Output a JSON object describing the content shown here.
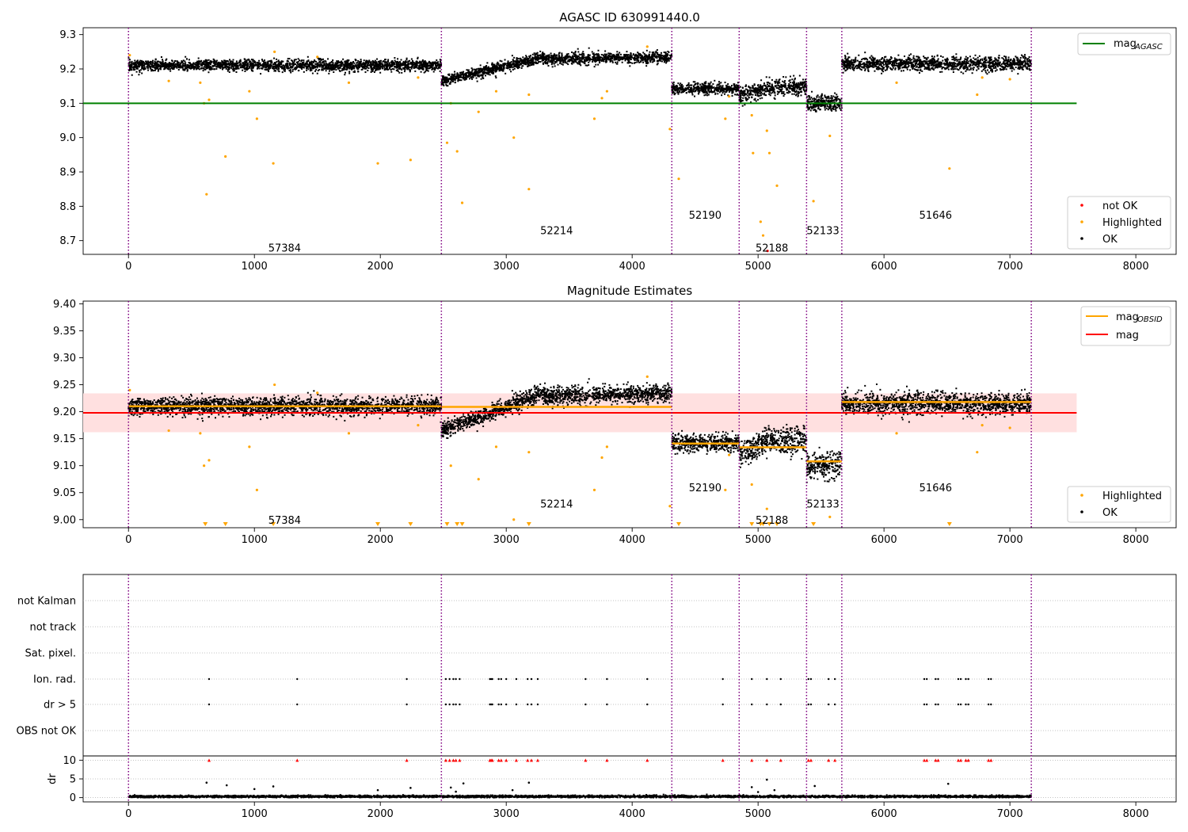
{
  "chart_data": [
    {
      "type": "scatter",
      "title": "AGASC ID 630991440.0",
      "xlim": [
        -360,
        8320
      ],
      "ylim": [
        8.66,
        9.32
      ],
      "xticks": [
        0,
        1000,
        2000,
        3000,
        4000,
        5000,
        6000,
        7000,
        8000
      ],
      "xtick_labels": [
        "0",
        "1000",
        "2000",
        "3000",
        "4000",
        "5000",
        "6000",
        "7000",
        "8000"
      ],
      "yticks": [
        8.7,
        8.8,
        8.9,
        9.0,
        9.1,
        9.2,
        9.3
      ],
      "ytick_labels": [
        "8.7",
        "8.8",
        "8.9",
        "9.0",
        "9.1",
        "9.2",
        "9.3"
      ],
      "obs_boundaries": [
        0,
        2485,
        4315,
        4850,
        5385,
        5665,
        7170
      ],
      "obs_labels": [
        {
          "text": "57384",
          "x": 1240,
          "y": 8.68
        },
        {
          "text": "52214",
          "x": 3400,
          "y": 8.73
        },
        {
          "text": "52190",
          "x": 4580,
          "y": 8.775
        },
        {
          "text": "52188",
          "x": 5110,
          "y": 8.68
        },
        {
          "text": "52133",
          "x": 5515,
          "y": 8.73
        },
        {
          "text": "51646",
          "x": 6410,
          "y": 8.775
        }
      ],
      "segments": [
        {
          "x0": 0,
          "x1": 2485,
          "level": 9.21,
          "spread": 0.008
        },
        {
          "x0": 2485,
          "x1": 4315,
          "start": 9.165,
          "end": 9.235,
          "spread": 0.008
        },
        {
          "x0": 4315,
          "x1": 4850,
          "level": 9.142,
          "spread": 0.008
        },
        {
          "x0": 4850,
          "x1": 5385,
          "start": 9.12,
          "end": 9.148,
          "spread": 0.012
        },
        {
          "x0": 5385,
          "x1": 5665,
          "level": 9.1,
          "spread": 0.012
        },
        {
          "x0": 5665,
          "x1": 7170,
          "level": 9.215,
          "spread": 0.01
        }
      ],
      "highlighted_points": [
        [
          10,
          9.24
        ],
        [
          320,
          9.165
        ],
        [
          570,
          9.16
        ],
        [
          600,
          9.1
        ],
        [
          620,
          8.835
        ],
        [
          640,
          9.11
        ],
        [
          770,
          8.945
        ],
        [
          960,
          9.135
        ],
        [
          1020,
          9.055
        ],
        [
          1150,
          8.925
        ],
        [
          1160,
          9.25
        ],
        [
          1500,
          9.235
        ],
        [
          1750,
          9.16
        ],
        [
          1980,
          8.925
        ],
        [
          2240,
          8.935
        ],
        [
          2300,
          9.175
        ],
        [
          2530,
          8.985
        ],
        [
          2560,
          9.1
        ],
        [
          2610,
          8.96
        ],
        [
          2650,
          8.81
        ],
        [
          2780,
          9.075
        ],
        [
          2920,
          9.135
        ],
        [
          3060,
          9.0
        ],
        [
          3180,
          8.85
        ],
        [
          3180,
          9.125
        ],
        [
          3700,
          9.055
        ],
        [
          3760,
          9.115
        ],
        [
          3800,
          9.135
        ],
        [
          4120,
          9.265
        ],
        [
          4300,
          9.025
        ],
        [
          4370,
          8.88
        ],
        [
          4740,
          9.055
        ],
        [
          4770,
          9.12
        ],
        [
          4950,
          9.065
        ],
        [
          4960,
          8.955
        ],
        [
          5020,
          8.755
        ],
        [
          5040,
          8.715
        ],
        [
          5070,
          9.02
        ],
        [
          5090,
          8.955
        ],
        [
          5150,
          8.86
        ],
        [
          5440,
          8.815
        ],
        [
          5570,
          9.005
        ],
        [
          6100,
          9.16
        ],
        [
          6520,
          8.91
        ],
        [
          6740,
          9.125
        ],
        [
          6780,
          9.175
        ],
        [
          7000,
          9.17
        ]
      ],
      "not_ok_points": [
        [
          5075,
          8.67
        ]
      ],
      "lines": [
        {
          "name": "mag_AGASC",
          "value": 9.1,
          "color": "#008000",
          "x0": -360,
          "x1": 7530
        }
      ],
      "legends": {
        "upper": [
          {
            "label": "mag",
            "sub": "AGASC",
            "color": "#008000"
          }
        ],
        "lower": [
          {
            "label": "not OK",
            "color": "#ff0000"
          },
          {
            "label": "Highlighted",
            "color": "#ffa500"
          },
          {
            "label": "OK",
            "color": "#000000"
          }
        ]
      },
      "grid": false
    },
    {
      "type": "scatter",
      "title": "Magnitude Estimates",
      "xlim": [
        -360,
        8320
      ],
      "ylim": [
        8.985,
        9.405
      ],
      "xticks": [
        0,
        1000,
        2000,
        3000,
        4000,
        5000,
        6000,
        7000,
        8000
      ],
      "xtick_labels": [
        "0",
        "1000",
        "2000",
        "3000",
        "4000",
        "5000",
        "6000",
        "7000",
        "8000"
      ],
      "yticks": [
        9.0,
        9.05,
        9.1,
        9.15,
        9.2,
        9.25,
        9.3,
        9.35,
        9.4
      ],
      "ytick_labels": [
        "9.00",
        "9.05",
        "9.10",
        "9.15",
        "9.20",
        "9.25",
        "9.30",
        "9.35",
        "9.40"
      ],
      "obs_boundaries": [
        0,
        2485,
        4315,
        4850,
        5385,
        5665,
        7170
      ],
      "obs_labels": [
        {
          "text": "57384",
          "x": 1240,
          "y": 9.0
        },
        {
          "text": "52214",
          "x": 3400,
          "y": 9.03
        },
        {
          "text": "52190",
          "x": 4580,
          "y": 9.06
        },
        {
          "text": "52188",
          "x": 5110,
          "y": 9.0
        },
        {
          "text": "52133",
          "x": 5515,
          "y": 9.03
        },
        {
          "text": "51646",
          "x": 6410,
          "y": 9.06
        }
      ],
      "obs_mag": [
        {
          "x0": 0,
          "x1": 2485,
          "value": 9.21
        },
        {
          "x0": 2485,
          "x1": 4315,
          "value": 9.209
        },
        {
          "x0": 4315,
          "x1": 4850,
          "value": 9.141
        },
        {
          "x0": 4850,
          "x1": 5385,
          "value": 9.134
        },
        {
          "x0": 5385,
          "x1": 5665,
          "value": 9.108
        },
        {
          "x0": 5665,
          "x1": 7170,
          "value": 9.218
        }
      ],
      "mag": {
        "value": 9.198,
        "band": [
          9.162,
          9.234
        ],
        "x0": -360,
        "x1": 7530,
        "color": "#ff0000",
        "band_color": "#ffe0e0"
      },
      "below_axis_markers_x": [
        610,
        770,
        1150,
        1980,
        2240,
        2530,
        2610,
        2650,
        3180,
        4370,
        4950,
        5020,
        5040,
        5090,
        5150,
        5440,
        6520
      ],
      "legends": {
        "upper": [
          {
            "label": "mag",
            "sub": "OBSID",
            "color": "#ffa500"
          },
          {
            "label": "mag",
            "sub": "",
            "color": "#ff0000"
          }
        ],
        "lower": [
          {
            "label": "Highlighted",
            "color": "#ffa500"
          },
          {
            "label": "OK",
            "color": "#000000"
          }
        ]
      },
      "grid": false
    },
    {
      "type": "scatter",
      "title": "",
      "xlim": [
        -360,
        8320
      ],
      "xticks": [
        0,
        1000,
        2000,
        3000,
        4000,
        5000,
        6000,
        7000,
        8000
      ],
      "xtick_labels": [
        "0",
        "1000",
        "2000",
        "3000",
        "4000",
        "5000",
        "6000",
        "7000",
        "8000"
      ],
      "flag_rows": [
        "not Kalman",
        "not track",
        "Sat. pixel.",
        "Ion. rad.",
        "dr > 5",
        "OBS not OK"
      ],
      "flag_points_x": [
        640,
        1340,
        2210,
        2520,
        2550,
        2580,
        2600,
        2630,
        2870,
        2880,
        2890,
        2940,
        2960,
        3000,
        3080,
        3170,
        3200,
        3250,
        3630,
        3800,
        4120,
        4720,
        4950,
        5070,
        5180,
        5400,
        5420,
        5560,
        5610,
        6320,
        6340,
        6410,
        6430,
        6590,
        6610,
        6650,
        6670,
        6830,
        6850
      ],
      "dr": {
        "ylim": [
          -0.5,
          10.5
        ],
        "yticks": [
          0,
          5,
          10
        ],
        "ytick_labels": [
          "0",
          "5",
          "10"
        ],
        "ylabel": "dr",
        "typical": 0.3,
        "outliers": [
          [
            620,
            4.0
          ],
          [
            780,
            3.3
          ],
          [
            1000,
            2.3
          ],
          [
            1150,
            3.0
          ],
          [
            1980,
            2.0
          ],
          [
            2240,
            2.6
          ],
          [
            2560,
            2.7
          ],
          [
            2600,
            1.6
          ],
          [
            2660,
            3.8
          ],
          [
            3050,
            2.0
          ],
          [
            3180,
            4.0
          ],
          [
            4950,
            2.8
          ],
          [
            5000,
            1.5
          ],
          [
            5070,
            4.8
          ],
          [
            5130,
            2.0
          ],
          [
            5450,
            3.1
          ],
          [
            6510,
            3.7
          ]
        ]
      },
      "obs_boundaries": [
        0,
        2485,
        4315,
        4850,
        5385,
        5665,
        7170
      ]
    }
  ]
}
